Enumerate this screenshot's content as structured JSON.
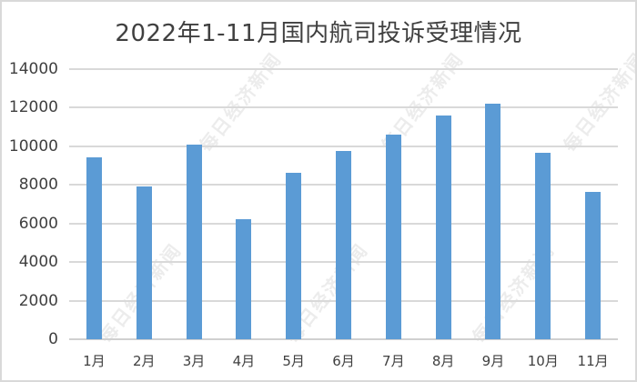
{
  "chart": {
    "title": "2022年1-11月国内航司投诉受理情况",
    "watermark": "每日经济新闻",
    "bar_color": "#5b9bd5",
    "gridline_color": "#d9d9d9",
    "frame_border_color": "#d9d9d9"
  },
  "y_ticks": [
    "0",
    "2000",
    "4000",
    "6000",
    "8000",
    "10000",
    "12000",
    "14000"
  ],
  "x_ticks": [
    "1月",
    "2月",
    "3月",
    "4月",
    "5月",
    "6月",
    "7月",
    "8月",
    "9月",
    "10月",
    "11月"
  ],
  "chart_data": {
    "type": "bar",
    "title": "2022年1-11月国内航司投诉受理情况",
    "xlabel": "",
    "ylabel": "",
    "categories": [
      "1月",
      "2月",
      "3月",
      "4月",
      "5月",
      "6月",
      "7月",
      "8月",
      "9月",
      "10月",
      "11月"
    ],
    "values": [
      9430,
      7920,
      10090,
      6220,
      8630,
      9760,
      10610,
      11600,
      12210,
      9670,
      7640
    ],
    "ylim": [
      0,
      14000
    ],
    "yticks": [
      0,
      2000,
      4000,
      6000,
      8000,
      10000,
      12000,
      14000
    ],
    "grid": true,
    "legend": null,
    "series_color": "#5b9bd5"
  }
}
